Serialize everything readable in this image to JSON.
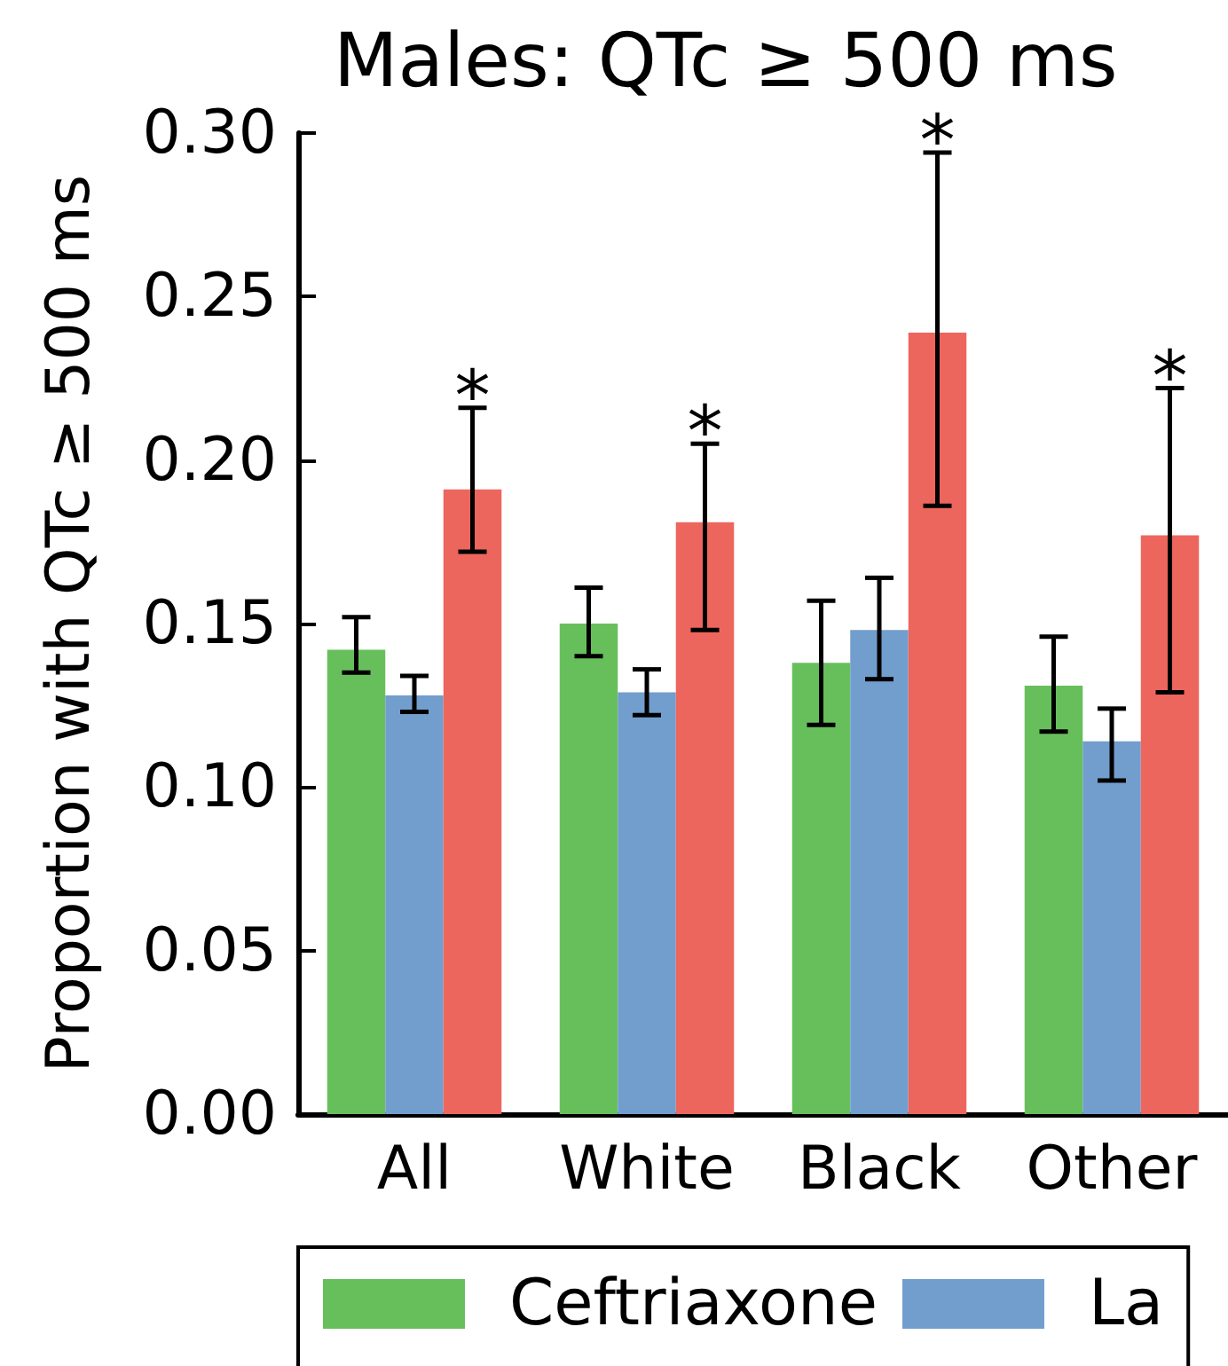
{
  "chart_data": {
    "type": "bar",
    "title": "Males: QTc ≥ 500 ms",
    "ylabel": "Proportion with QTc ≥ 500 ms",
    "categories": [
      "All",
      "White",
      "Black",
      "Other"
    ],
    "series": [
      {
        "name": "Ceftriaxone",
        "color": "#67bf5c",
        "values": [
          0.142,
          0.15,
          0.138,
          0.131
        ],
        "errors": [
          [
            0.135,
            0.152
          ],
          [
            0.14,
            0.161
          ],
          [
            0.119,
            0.157
          ],
          [
            0.117,
            0.146
          ]
        ]
      },
      {
        "name": "La",
        "color": "#729ece",
        "values": [
          0.128,
          0.129,
          0.148,
          0.114
        ],
        "errors": [
          [
            0.123,
            0.134
          ],
          [
            0.122,
            0.136
          ],
          [
            0.133,
            0.164
          ],
          [
            0.102,
            0.124
          ]
        ]
      },
      {
        "color": "#ed665d",
        "values": [
          0.191,
          0.181,
          0.239,
          0.177
        ],
        "errors": [
          [
            0.172,
            0.216
          ],
          [
            0.148,
            0.205
          ],
          [
            0.186,
            0.294
          ],
          [
            0.129,
            0.222
          ]
        ]
      }
    ],
    "annotations": [
      "*",
      "*",
      "*",
      "*"
    ],
    "ylim": [
      0,
      0.3
    ],
    "yticks": [
      {
        "value": 0,
        "label": "0.00"
      },
      0.05,
      {
        "value": 0.1,
        "label": "0.10"
      },
      0.15,
      {
        "value": 0.2,
        "label": "0.20"
      },
      0.25,
      {
        "value": 0.3,
        "label": "0.30"
      }
    ],
    "grid": false,
    "legend": "bottom"
  }
}
